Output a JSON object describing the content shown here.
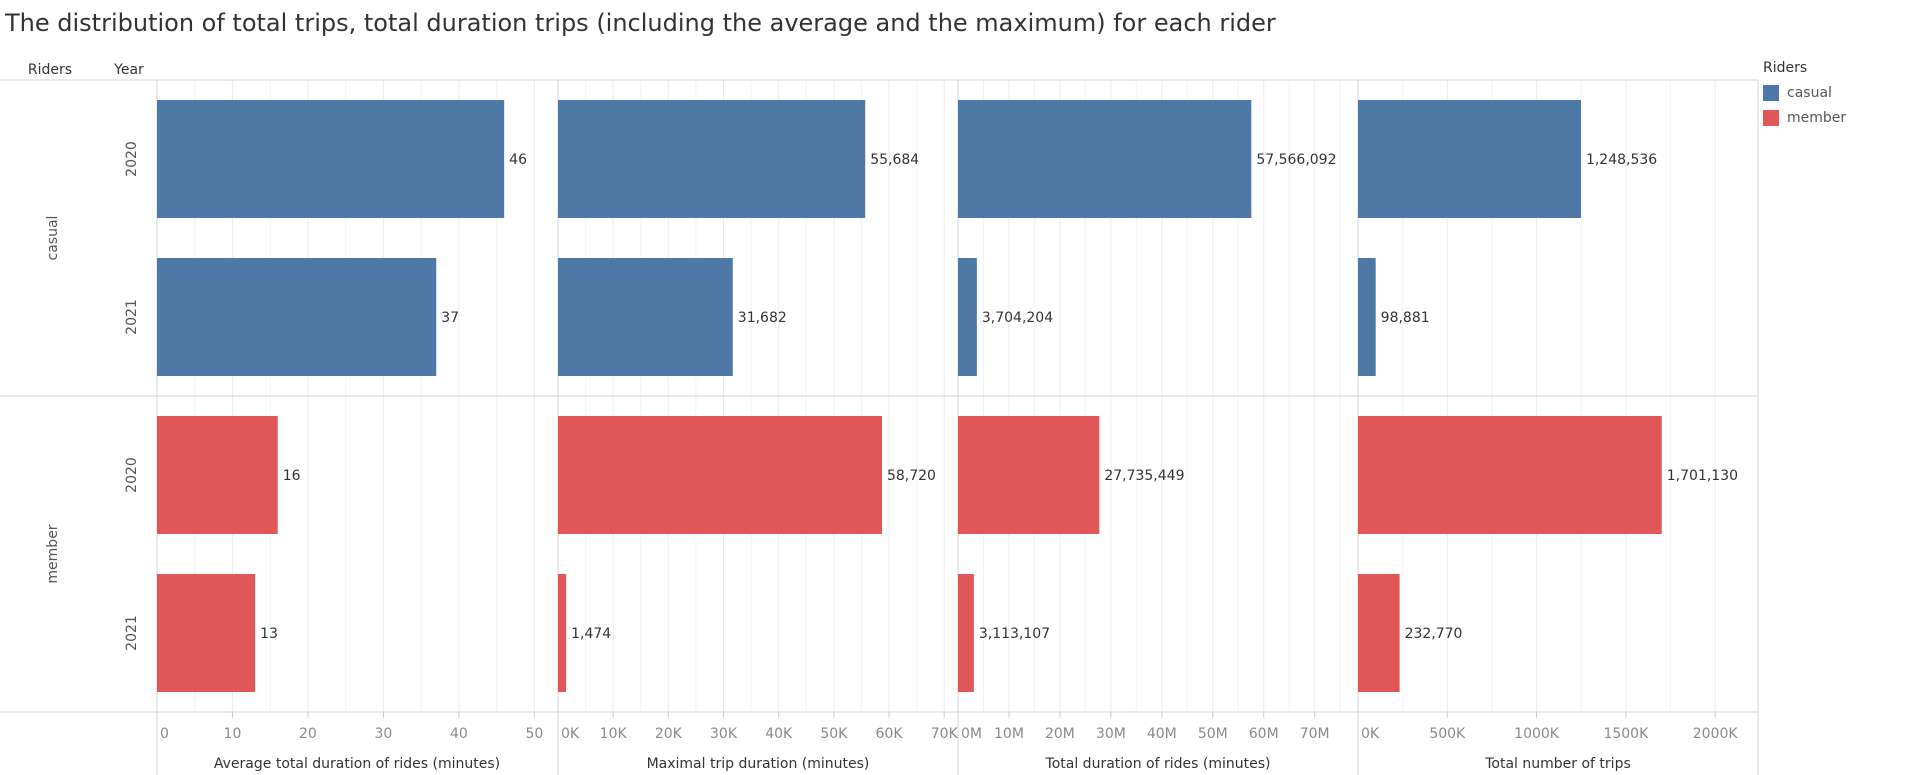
{
  "title": "The distribution of total trips, total duration trips (including the average and the maximum) for each rider",
  "colors": {
    "casual": "#4e79a7",
    "member": "#e15759"
  },
  "chart_data": {
    "type": "bar",
    "orientation": "horizontal",
    "title": "The distribution of total trips, total duration trips (including the average and the maximum) for each rider",
    "row_headers": [
      "Riders",
      "Year"
    ],
    "rows": [
      {
        "rider": "casual",
        "year": "2020"
      },
      {
        "rider": "casual",
        "year": "2021"
      },
      {
        "rider": "member",
        "year": "2020"
      },
      {
        "rider": "member",
        "year": "2021"
      }
    ],
    "measures": [
      {
        "name": "Average total duration of rides (minutes)",
        "values": [
          46,
          37,
          16,
          13
        ],
        "labels": [
          "46",
          "37",
          "16",
          "13"
        ],
        "xlim": [
          0,
          53
        ],
        "ticks": [
          0,
          10,
          20,
          30,
          40,
          50
        ],
        "tick_labels": [
          "0",
          "10",
          "20",
          "30",
          "40",
          "50"
        ]
      },
      {
        "name": "Maximal trip duration (minutes)",
        "values": [
          55684,
          31682,
          58720,
          1474
        ],
        "labels": [
          "55,684",
          "31,682",
          "58,720",
          "1,474"
        ],
        "xlim": [
          0,
          72500
        ],
        "ticks": [
          0,
          10000,
          20000,
          30000,
          40000,
          50000,
          60000,
          70000
        ],
        "tick_labels": [
          "0K",
          "10K",
          "20K",
          "30K",
          "40K",
          "50K",
          "60K",
          "70K"
        ]
      },
      {
        "name": "Total duration of rides (minutes)",
        "values": [
          57566092,
          3704204,
          27735449,
          3113107
        ],
        "labels": [
          "57,566,092",
          "3,704,204",
          "27,735,449",
          "3,113,107"
        ],
        "xlim": [
          0,
          78500000
        ],
        "ticks": [
          0,
          10000000,
          20000000,
          30000000,
          40000000,
          50000000,
          60000000,
          70000000
        ],
        "tick_labels": [
          "0M",
          "10M",
          "20M",
          "30M",
          "40M",
          "50M",
          "60M",
          "70M"
        ]
      },
      {
        "name": "Total number of trips",
        "values": [
          1248536,
          98881,
          1701130,
          232770
        ],
        "labels": [
          "1,248,536",
          "98,881",
          "1,701,130",
          "232,770"
        ],
        "xlim": [
          0,
          2240000
        ],
        "ticks": [
          0,
          500000,
          1000000,
          1500000,
          2000000
        ],
        "tick_labels": [
          "0K",
          "500K",
          "1000K",
          "1500K",
          "2000K"
        ]
      }
    ],
    "legend": {
      "title": "Riders",
      "position": "top-right",
      "entries": [
        "casual",
        "member"
      ]
    },
    "grid": true
  }
}
